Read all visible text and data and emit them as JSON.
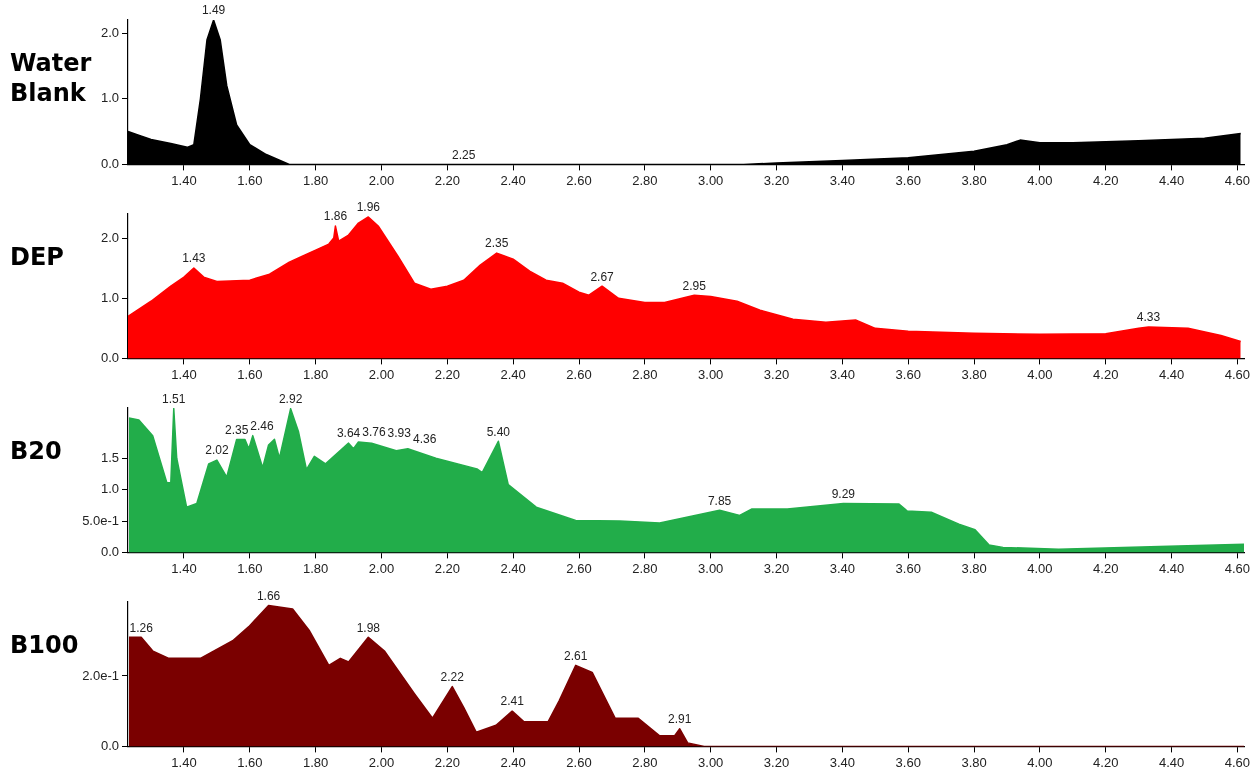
{
  "chart_data": [
    {
      "type": "area",
      "title": "Water Blank",
      "color": "#000000",
      "x": [
        1.23,
        1.26,
        1.3,
        1.36,
        1.41,
        1.43,
        1.45,
        1.47,
        1.49,
        1.51,
        1.53,
        1.56,
        1.6,
        1.65,
        1.72,
        3.1,
        3.2,
        3.4,
        3.6,
        3.8,
        3.9,
        3.94,
        4.0,
        4.1,
        4.3,
        4.5,
        4.61
      ],
      "values": [
        0.5,
        0.45,
        0.38,
        0.32,
        0.26,
        0.3,
        1.0,
        1.9,
        2.2,
        1.9,
        1.2,
        0.6,
        0.3,
        0.15,
        0.0,
        0.0,
        0.02,
        0.06,
        0.1,
        0.2,
        0.3,
        0.37,
        0.33,
        0.33,
        0.36,
        0.4,
        0.47
      ],
      "xlim": [
        1.23,
        4.62
      ],
      "ylim": [
        0,
        2.2
      ],
      "xticks": [
        {
          "value": 1.4,
          "label": "1.40"
        },
        {
          "value": 1.6,
          "label": "1.60"
        },
        {
          "value": 1.8,
          "label": "1.80"
        },
        {
          "value": 2.0,
          "label": "2.00"
        },
        {
          "value": 2.2,
          "label": "2.20"
        },
        {
          "value": 2.4,
          "label": "2.40"
        },
        {
          "value": 2.6,
          "label": "2.60"
        },
        {
          "value": 2.8,
          "label": "2.80"
        },
        {
          "value": 3.0,
          "label": "3.00"
        },
        {
          "value": 3.2,
          "label": "3.20"
        },
        {
          "value": 3.4,
          "label": "3.40"
        },
        {
          "value": 3.6,
          "label": "3.60"
        },
        {
          "value": 3.8,
          "label": "3.80"
        },
        {
          "value": 4.0,
          "label": "4.00"
        },
        {
          "value": 4.2,
          "label": "4.20"
        },
        {
          "value": 4.4,
          "label": "4.40"
        },
        {
          "value": 4.6,
          "label": "4.60"
        }
      ],
      "yticks": [
        {
          "value": 0,
          "label": "0.0"
        },
        {
          "value": 1,
          "label": "1.0"
        },
        {
          "value": 2,
          "label": "2.0"
        }
      ],
      "annotations": [
        {
          "text": "1.49",
          "x": 1.49,
          "y": 2.2
        },
        {
          "text": "2.25",
          "x": 2.25,
          "y": 0
        }
      ]
    },
    {
      "type": "area",
      "title": "DEP",
      "color": "#ff0000",
      "x": [
        1.23,
        1.3,
        1.36,
        1.4,
        1.43,
        1.46,
        1.5,
        1.6,
        1.66,
        1.72,
        1.8,
        1.84,
        1.855,
        1.86,
        1.87,
        1.9,
        1.93,
        1.96,
        1.99,
        2.05,
        2.1,
        2.15,
        2.2,
        2.25,
        2.3,
        2.35,
        2.4,
        2.45,
        2.5,
        2.55,
        2.6,
        2.63,
        2.67,
        2.72,
        2.8,
        2.86,
        2.95,
        3.0,
        3.08,
        3.15,
        3.25,
        3.35,
        3.44,
        3.5,
        3.6,
        3.8,
        4.0,
        4.2,
        4.3,
        4.33,
        4.45,
        4.55,
        4.61
      ],
      "values": [
        0.7,
        0.95,
        1.2,
        1.35,
        1.5,
        1.35,
        1.28,
        1.3,
        1.4,
        1.6,
        1.8,
        1.9,
        2.0,
        2.2,
        1.95,
        2.05,
        2.25,
        2.35,
        2.2,
        1.7,
        1.25,
        1.15,
        1.2,
        1.3,
        1.55,
        1.75,
        1.65,
        1.45,
        1.3,
        1.25,
        1.1,
        1.05,
        1.2,
        1.0,
        0.93,
        0.93,
        1.05,
        1.03,
        0.95,
        0.8,
        0.65,
        0.6,
        0.64,
        0.5,
        0.45,
        0.42,
        0.4,
        0.41,
        0.5,
        0.52,
        0.5,
        0.38,
        0.28
      ],
      "xlim": [
        1.23,
        4.62
      ],
      "ylim": [
        0,
        2.4
      ],
      "xticks": [
        {
          "value": 1.4,
          "label": "1.40"
        },
        {
          "value": 1.6,
          "label": "1.60"
        },
        {
          "value": 1.8,
          "label": "1.80"
        },
        {
          "value": 2.0,
          "label": "2.00"
        },
        {
          "value": 2.2,
          "label": "2.20"
        },
        {
          "value": 2.4,
          "label": "2.40"
        },
        {
          "value": 2.6,
          "label": "2.60"
        },
        {
          "value": 2.8,
          "label": "2.80"
        },
        {
          "value": 3.0,
          "label": "3.00"
        },
        {
          "value": 3.2,
          "label": "3.20"
        },
        {
          "value": 3.4,
          "label": "3.40"
        },
        {
          "value": 3.6,
          "label": "3.60"
        },
        {
          "value": 3.8,
          "label": "3.80"
        },
        {
          "value": 4.0,
          "label": "4.00"
        },
        {
          "value": 4.2,
          "label": "4.20"
        },
        {
          "value": 4.4,
          "label": "4.40"
        },
        {
          "value": 4.6,
          "label": "4.60"
        }
      ],
      "yticks": [
        {
          "value": 0,
          "label": "0.0"
        },
        {
          "value": 1,
          "label": "1.0"
        },
        {
          "value": 2,
          "label": "2.0"
        }
      ],
      "annotations": [
        {
          "text": "1.43",
          "x": 1.43,
          "y": 1.5
        },
        {
          "text": "1.86",
          "x": 1.86,
          "y": 2.2
        },
        {
          "text": "1.96",
          "x": 1.96,
          "y": 2.35
        },
        {
          "text": "2.35",
          "x": 2.35,
          "y": 1.75
        },
        {
          "text": "2.67",
          "x": 2.67,
          "y": 1.2
        },
        {
          "text": "2.95",
          "x": 2.95,
          "y": 1.05
        },
        {
          "text": "4.33",
          "x": 4.33,
          "y": 0.52
        }
      ]
    },
    {
      "type": "area",
      "title": "B20",
      "color": "#22ad4a",
      "x": [
        1.233,
        1.263,
        1.305,
        1.348,
        1.36,
        1.369,
        1.378,
        1.408,
        1.439,
        1.475,
        1.5,
        1.53,
        1.56,
        1.585,
        1.597,
        1.609,
        1.639,
        1.657,
        1.675,
        1.69,
        1.724,
        1.748,
        1.772,
        1.796,
        1.83,
        1.9,
        1.915,
        1.93,
        1.97,
        2.045,
        2.08,
        2.165,
        2.29,
        2.306,
        2.355,
        2.385,
        2.47,
        2.59,
        2.724,
        2.845,
        3.027,
        3.088,
        3.124,
        3.233,
        3.403,
        3.572,
        3.597,
        3.67,
        3.754,
        3.803,
        3.845,
        3.888,
        4.057,
        4.42,
        4.62
      ],
      "values": [
        2.14,
        2.11,
        1.86,
        1.11,
        1.11,
        2.29,
        1.5,
        0.72,
        0.78,
        1.41,
        1.47,
        1.2,
        1.8,
        1.8,
        1.65,
        1.86,
        1.35,
        1.71,
        1.8,
        1.5,
        2.29,
        1.92,
        1.32,
        1.53,
        1.41,
        1.74,
        1.65,
        1.76,
        1.74,
        1.62,
        1.65,
        1.5,
        1.33,
        1.27,
        1.77,
        1.08,
        0.72,
        0.51,
        0.5,
        0.47,
        0.67,
        0.59,
        0.69,
        0.69,
        0.78,
        0.77,
        0.66,
        0.64,
        0.45,
        0.36,
        0.12,
        0.08,
        0.05,
        0.1,
        0.13
      ],
      "xlim": [
        1.23,
        4.62
      ],
      "ylim": [
        0,
        2.3
      ],
      "xticks": [
        {
          "value": 1.4,
          "label": "1.40"
        },
        {
          "value": 1.6,
          "label": "1.60"
        },
        {
          "value": 1.8,
          "label": "1.80"
        },
        {
          "value": 2.0,
          "label": "2.00"
        },
        {
          "value": 2.2,
          "label": "2.20"
        },
        {
          "value": 2.4,
          "label": "2.40"
        },
        {
          "value": 2.6,
          "label": "2.60"
        },
        {
          "value": 2.8,
          "label": "2.80"
        },
        {
          "value": 3.0,
          "label": "3.00"
        },
        {
          "value": 3.2,
          "label": "3.20"
        },
        {
          "value": 3.4,
          "label": "3.40"
        },
        {
          "value": 3.6,
          "label": "3.60"
        },
        {
          "value": 3.8,
          "label": "3.80"
        },
        {
          "value": 4.0,
          "label": "4.00"
        },
        {
          "value": 4.2,
          "label": "4.20"
        },
        {
          "value": 4.4,
          "label": "4.40"
        },
        {
          "value": 4.6,
          "label": "4.60"
        }
      ],
      "yticks": [
        {
          "value": 0,
          "label": "0.0"
        },
        {
          "value": 0.5,
          "label": "5.0e-1"
        },
        {
          "value": 1,
          "label": "1.0"
        },
        {
          "value": 1.5,
          "label": "1.5"
        }
      ],
      "annotations": [
        {
          "text": "1.51",
          "x": 1.369,
          "y": 2.29
        },
        {
          "text": "2.02",
          "x": 1.5,
          "y": 1.47
        },
        {
          "text": "2.35",
          "x": 1.56,
          "y": 1.8
        },
        {
          "text": "2.46",
          "x": 1.609,
          "y": 1.86
        },
        {
          "text": "2.92",
          "x": 1.724,
          "y": 2.29
        },
        {
          "text": "3.64",
          "x": 1.9,
          "y": 1.74
        },
        {
          "text": "3.76",
          "x": 1.93,
          "y": 1.76
        },
        {
          "text": "3.93",
          "x": 1.97,
          "y": 1.74
        },
        {
          "text": "4.36",
          "x": 2.08,
          "y": 1.65
        },
        {
          "text": "5.40",
          "x": 2.355,
          "y": 1.77
        },
        {
          "text": "7.85",
          "x": 3.027,
          "y": 0.67
        },
        {
          "text": "9.29",
          "x": 3.403,
          "y": 0.78
        }
      ]
    },
    {
      "type": "area",
      "title": "B100",
      "color": "#7a0000",
      "x": [
        1.233,
        1.27,
        1.306,
        1.354,
        1.45,
        1.548,
        1.597,
        1.657,
        1.73,
        1.78,
        1.84,
        1.875,
        1.9,
        1.96,
        2.01,
        2.1,
        2.155,
        2.215,
        2.25,
        2.288,
        2.348,
        2.397,
        2.433,
        2.506,
        2.54,
        2.59,
        2.64,
        2.71,
        2.78,
        2.845,
        2.89,
        2.906,
        2.93,
        2.98,
        4.62
      ],
      "values": [
        0.31,
        0.31,
        0.27,
        0.25,
        0.25,
        0.3,
        0.34,
        0.4,
        0.39,
        0.33,
        0.23,
        0.25,
        0.24,
        0.31,
        0.27,
        0.15,
        0.08,
        0.17,
        0.11,
        0.04,
        0.06,
        0.1,
        0.07,
        0.07,
        0.13,
        0.23,
        0.21,
        0.08,
        0.08,
        0.03,
        0.03,
        0.05,
        0.01,
        0.0,
        0.0
      ],
      "xlim": [
        1.23,
        4.62
      ],
      "ylim": [
        0,
        0.41
      ],
      "xticks": [
        {
          "value": 1.4,
          "label": "1.40"
        },
        {
          "value": 1.6,
          "label": "1.60"
        },
        {
          "value": 1.8,
          "label": "1.80"
        },
        {
          "value": 2.0,
          "label": "2.00"
        },
        {
          "value": 2.2,
          "label": "2.20"
        },
        {
          "value": 2.4,
          "label": "2.40"
        },
        {
          "value": 2.6,
          "label": "2.60"
        },
        {
          "value": 2.8,
          "label": "2.80"
        },
        {
          "value": 3.0,
          "label": "3.00"
        },
        {
          "value": 3.2,
          "label": "3.20"
        },
        {
          "value": 3.4,
          "label": "3.40"
        },
        {
          "value": 3.6,
          "label": "3.60"
        },
        {
          "value": 3.8,
          "label": "3.80"
        },
        {
          "value": 4.0,
          "label": "4.00"
        },
        {
          "value": 4.2,
          "label": "4.20"
        },
        {
          "value": 4.4,
          "label": "4.40"
        },
        {
          "value": 4.6,
          "label": "4.60"
        }
      ],
      "yticks": [
        {
          "value": 0,
          "label": "0.0"
        },
        {
          "value": 0.2,
          "label": "2.0e-1"
        }
      ],
      "annotations": [
        {
          "text": "1.26",
          "x": 1.27,
          "y": 0.31
        },
        {
          "text": "1.66",
          "x": 1.657,
          "y": 0.4
        },
        {
          "text": "1.98",
          "x": 1.96,
          "y": 0.31
        },
        {
          "text": "2.22",
          "x": 2.215,
          "y": 0.17
        },
        {
          "text": "2.41",
          "x": 2.397,
          "y": 0.1
        },
        {
          "text": "2.61",
          "x": 2.59,
          "y": 0.23
        },
        {
          "text": "2.91",
          "x": 2.906,
          "y": 0.05
        }
      ]
    }
  ]
}
